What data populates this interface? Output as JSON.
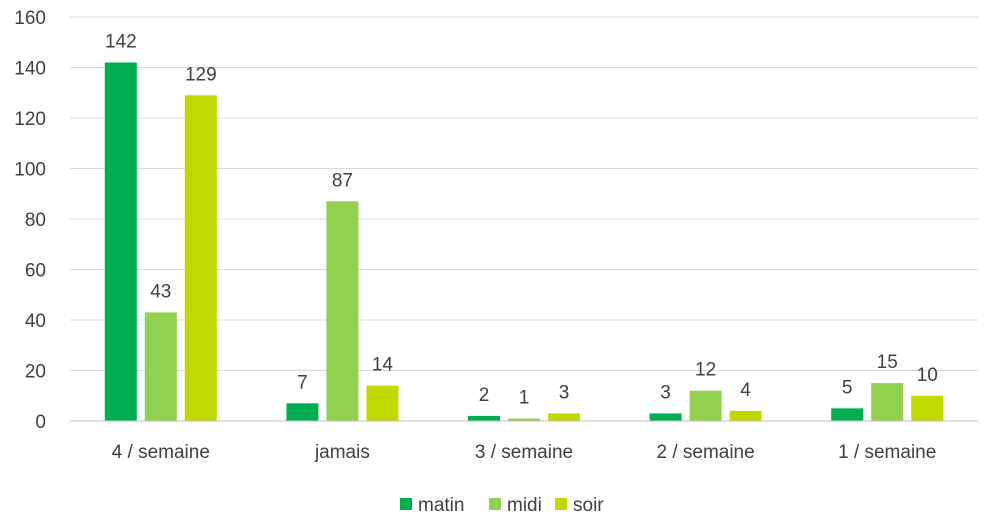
{
  "chart_data": {
    "type": "bar",
    "categories": [
      "4 / semaine",
      "jamais",
      "3 / semaine",
      "2 / semaine",
      "1 / semaine"
    ],
    "series": [
      {
        "name": "matin",
        "color": "#00b050",
        "values": [
          142,
          7,
          2,
          3,
          5
        ]
      },
      {
        "name": "midi",
        "color": "#92d050",
        "values": [
          43,
          87,
          1,
          12,
          15
        ]
      },
      {
        "name": "soir",
        "color": "#c0d800",
        "values": [
          129,
          14,
          3,
          4,
          10
        ]
      }
    ],
    "ylim": [
      0,
      160
    ],
    "yticks": [
      "0",
      "20",
      "40",
      "60",
      "80",
      "100",
      "120",
      "140",
      "160"
    ],
    "grid": true,
    "legend_position": "bottom",
    "data_labels": true
  }
}
